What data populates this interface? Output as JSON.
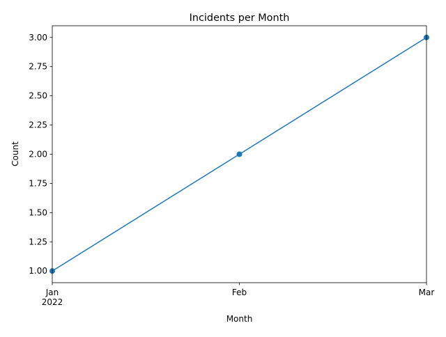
{
  "chart_data": {
    "type": "line",
    "title": "Incidents per Month",
    "xlabel": "Month",
    "ylabel": "Count",
    "x": [
      "2022-01",
      "2022-02",
      "2022-03"
    ],
    "x_tick_labels": [
      {
        "month": "Jan",
        "year": "2022"
      },
      {
        "month": "Feb",
        "year": ""
      },
      {
        "month": "Mar",
        "year": ""
      }
    ],
    "series": [
      {
        "values": [
          1,
          2,
          3
        ],
        "color": "#1f77b4",
        "marker": "circle"
      }
    ],
    "y_ticks": [
      "1.00",
      "1.25",
      "1.50",
      "1.75",
      "2.00",
      "2.25",
      "2.50",
      "2.75",
      "3.00"
    ],
    "ylim": [
      0.9,
      3.1
    ],
    "grid": false,
    "legend": "none"
  }
}
